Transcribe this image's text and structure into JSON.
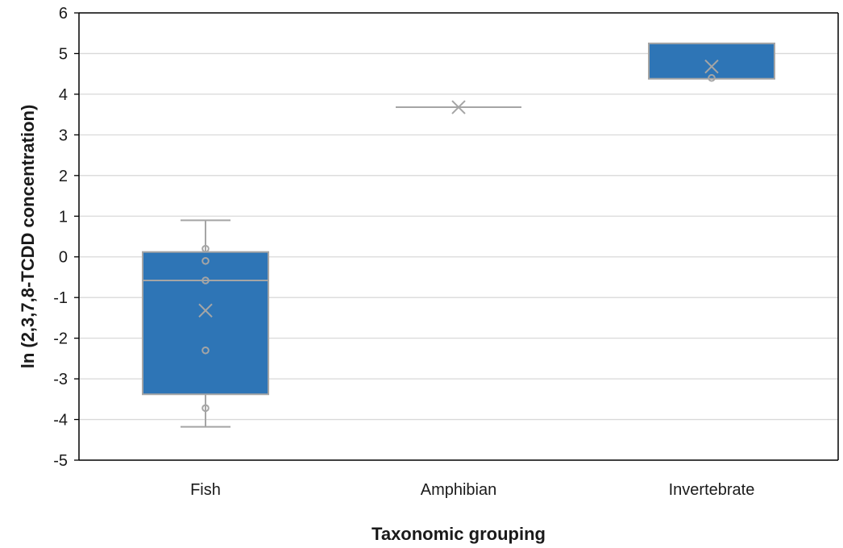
{
  "chart_data": {
    "type": "box",
    "title": "",
    "xlabel": "Taxonomic grouping",
    "ylabel": "ln (2,3,7,8-TCDD concentration)",
    "ylim": [
      -5,
      6
    ],
    "yticks": [
      -5,
      -4,
      -3,
      -2,
      -1,
      0,
      1,
      2,
      3,
      4,
      5,
      6
    ],
    "grid": true,
    "legend": "none",
    "categories": [
      "Fish",
      "Amphibian",
      "Invertebrate"
    ],
    "boxes": [
      {
        "category": "Fish",
        "whisker_low": -4.18,
        "q1": -3.38,
        "median": -0.58,
        "q3": 0.12,
        "whisker_high": 0.9,
        "mean": -1.32,
        "points": [
          0.2,
          -0.1,
          -0.58,
          -2.3,
          -3.72
        ]
      },
      {
        "category": "Amphibian",
        "whisker_low": 3.68,
        "q1": 3.68,
        "median": 3.68,
        "q3": 3.68,
        "whisker_high": 3.68,
        "mean": 3.68,
        "points": []
      },
      {
        "category": "Invertebrate",
        "whisker_low": 4.38,
        "q1": 4.38,
        "median": 5.25,
        "q3": 5.25,
        "whisker_high": 5.25,
        "mean": 4.68,
        "points": [
          4.4
        ]
      }
    ]
  },
  "colors": {
    "box_fill": "#2e75b6",
    "box_stroke": "#a5a5a5",
    "gridline": "#d9d9d9",
    "axis": "#000000",
    "marker": "#a5a5a5"
  }
}
